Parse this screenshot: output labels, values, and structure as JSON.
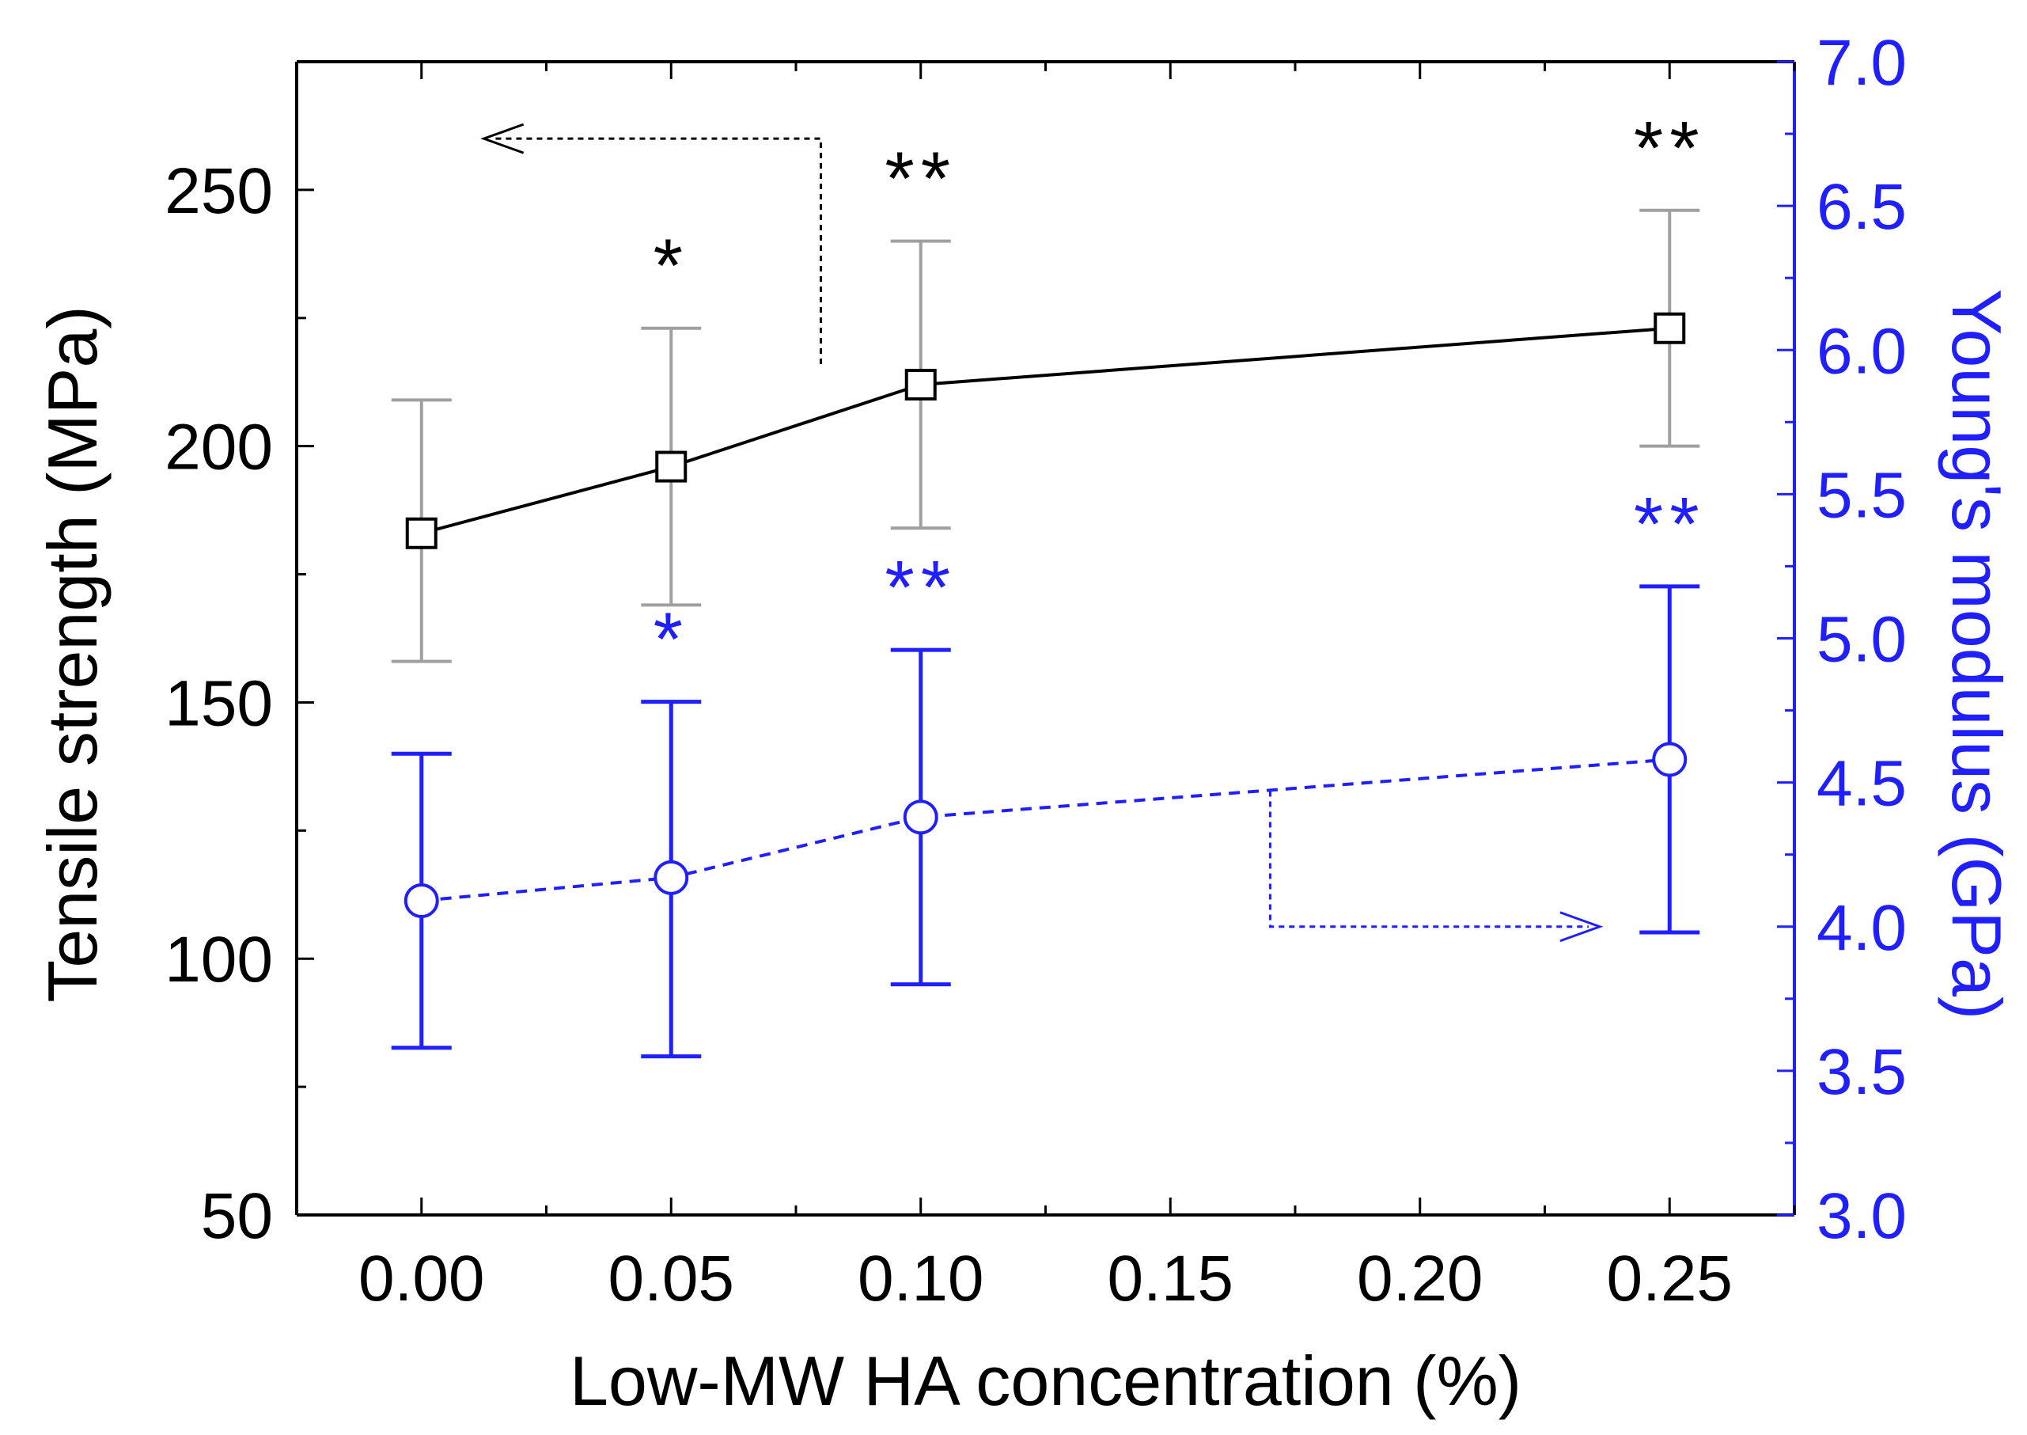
{
  "chart_data": {
    "type": "line",
    "title": "",
    "xlabel": "Low-MW HA concentration (%)",
    "ylabel": "Tensile strength (MPa)",
    "y2label": "Young's modulus (GPa)",
    "xlim": [
      -0.025,
      0.275
    ],
    "ylim": [
      50,
      275
    ],
    "y2lim": [
      3.0,
      7.0
    ],
    "x_ticks": [
      "0.00",
      "0.05",
      "0.10",
      "0.15",
      "0.20",
      "0.25"
    ],
    "y_ticks": [
      "50",
      "100",
      "150",
      "200",
      "250"
    ],
    "y2_ticks": [
      "3.0",
      "3.5",
      "4.0",
      "4.5",
      "5.0",
      "5.5",
      "6.0",
      "6.5",
      "7.0"
    ],
    "series": [
      {
        "name": "Tensile strength",
        "axis": "left",
        "color": "#000000",
        "error_color": "#a0a0a0",
        "marker": "square",
        "line": "solid",
        "x": [
          0.0,
          0.05,
          0.1,
          0.25
        ],
        "values": [
          183,
          196,
          212,
          223
        ],
        "err_low": [
          158,
          169,
          184,
          200
        ],
        "err_high": [
          209,
          223,
          240,
          246
        ],
        "significance": [
          "",
          "*",
          "**",
          "**"
        ]
      },
      {
        "name": "Young's modulus",
        "axis": "right",
        "color": "#1f1fff",
        "error_color": "#1f1fff",
        "marker": "circle",
        "line": "dashed",
        "x": [
          0.0,
          0.05,
          0.1,
          0.25
        ],
        "values": [
          4.09,
          4.17,
          4.38,
          4.58
        ],
        "err_low": [
          3.58,
          3.55,
          3.8,
          3.98
        ],
        "err_high": [
          4.6,
          4.78,
          4.96,
          5.18
        ],
        "significance": [
          "",
          "*",
          "**",
          "**"
        ]
      }
    ],
    "annotations": [
      {
        "type": "arrow",
        "direction": "left",
        "target_axis": "left",
        "color": "#000000"
      },
      {
        "type": "arrow",
        "direction": "right",
        "target_axis": "right",
        "color": "#1f1fff"
      }
    ]
  }
}
